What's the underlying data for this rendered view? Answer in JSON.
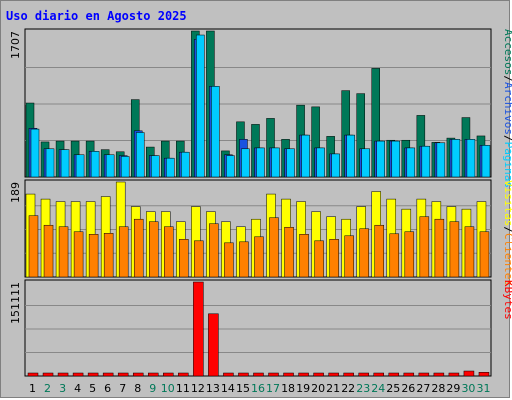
{
  "title": "Uso diario en Agosto 2025",
  "colors": {
    "background": "#c0c0c0",
    "visits": "#007858",
    "pages": "#00ccff",
    "files": "#1a52e0",
    "clients": "#ff8000",
    "sites": "#ffff00",
    "kbytes": "#ff0000",
    "weekend_tick": "#007858",
    "weekday_tick": "#000000"
  },
  "chart_data": [
    {
      "type": "bar",
      "ytick": "1707",
      "ylim": [
        0,
        1707
      ],
      "right_labels": [
        {
          "text": "Accesos",
          "color": "#007858"
        },
        {
          "text": "/",
          "color": "#000000"
        },
        {
          "text": "Archivos",
          "color": "#1a52e0"
        },
        {
          "text": "/",
          "color": "#000000"
        },
        {
          "text": "Páginas",
          "color": "#00ccff"
        }
      ],
      "series": [
        {
          "name": "Accesos",
          "values": [
            865,
            410,
            420,
            420,
            420,
            320,
            295,
            905,
            350,
            420,
            420,
            1707,
            1707,
            305,
            645,
            615,
            685,
            440,
            840,
            820,
            475,
            1010,
            975,
            1270,
            430,
            430,
            720,
            405,
            455,
            695,
            480
          ]
        },
        {
          "name": "Archivos",
          "values": [
            570,
            330,
            320,
            260,
            300,
            260,
            250,
            540,
            250,
            220,
            290,
            1610,
            1060,
            260,
            440,
            340,
            340,
            330,
            490,
            340,
            270,
            490,
            330,
            420,
            420,
            340,
            360,
            400,
            440,
            440,
            370
          ]
        },
        {
          "name": "Páginas",
          "values": [
            560,
            330,
            320,
            260,
            300,
            260,
            240,
            520,
            250,
            220,
            290,
            1660,
            1060,
            250,
            330,
            340,
            340,
            330,
            490,
            340,
            270,
            490,
            330,
            420,
            420,
            340,
            360,
            400,
            440,
            440,
            370
          ]
        }
      ]
    },
    {
      "type": "bar",
      "ytick": "189",
      "ylim": [
        0,
        189
      ],
      "right_labels": [
        {
          "text": "Visitas",
          "color": "#ffff00"
        },
        {
          "text": "/",
          "color": "#000000"
        },
        {
          "text": "Clientes",
          "color": "#ff8000"
        }
      ],
      "series": [
        {
          "name": "Visitas",
          "values": [
            165,
            155,
            150,
            150,
            150,
            160,
            189,
            140,
            130,
            130,
            110,
            140,
            130,
            110,
            100,
            115,
            165,
            155,
            150,
            130,
            120,
            115,
            140,
            170,
            155,
            135,
            155,
            150,
            140,
            135,
            150
          ]
        },
        {
          "name": "Clientes",
          "values": [
            122,
            103,
            100,
            90,
            85,
            87,
            100,
            115,
            110,
            100,
            75,
            72,
            106,
            68,
            70,
            80,
            118,
            99,
            85,
            72,
            75,
            82,
            96,
            103,
            86,
            90,
            120,
            115,
            110,
            100,
            90
          ]
        }
      ]
    },
    {
      "type": "bar",
      "ytick": "151111",
      "ylim": [
        0,
        151111
      ],
      "right_labels": [
        {
          "text": "KBytes",
          "color": "#ff0000"
        }
      ],
      "series": [
        {
          "name": "KBytes",
          "values": [
            1200,
            1200,
            1200,
            1200,
            1200,
            1200,
            1200,
            3000,
            1200,
            1200,
            1200,
            151111,
            100000,
            1200,
            1200,
            1200,
            1200,
            1200,
            1200,
            1200,
            1200,
            1200,
            1200,
            1200,
            1200,
            1200,
            1200,
            1200,
            1200,
            8000,
            6000
          ]
        }
      ]
    }
  ],
  "x_axis": {
    "labels": [
      "1",
      "2",
      "3",
      "4",
      "5",
      "6",
      "7",
      "8",
      "9",
      "10",
      "11",
      "12",
      "13",
      "14",
      "15",
      "16",
      "17",
      "18",
      "19",
      "20",
      "21",
      "22",
      "23",
      "24",
      "25",
      "26",
      "27",
      "28",
      "29",
      "30",
      "31"
    ],
    "weekend": [
      false,
      true,
      true,
      false,
      false,
      false,
      false,
      false,
      true,
      true,
      false,
      false,
      false,
      false,
      false,
      true,
      true,
      false,
      false,
      false,
      false,
      false,
      true,
      true,
      false,
      false,
      false,
      false,
      false,
      true,
      true
    ]
  }
}
